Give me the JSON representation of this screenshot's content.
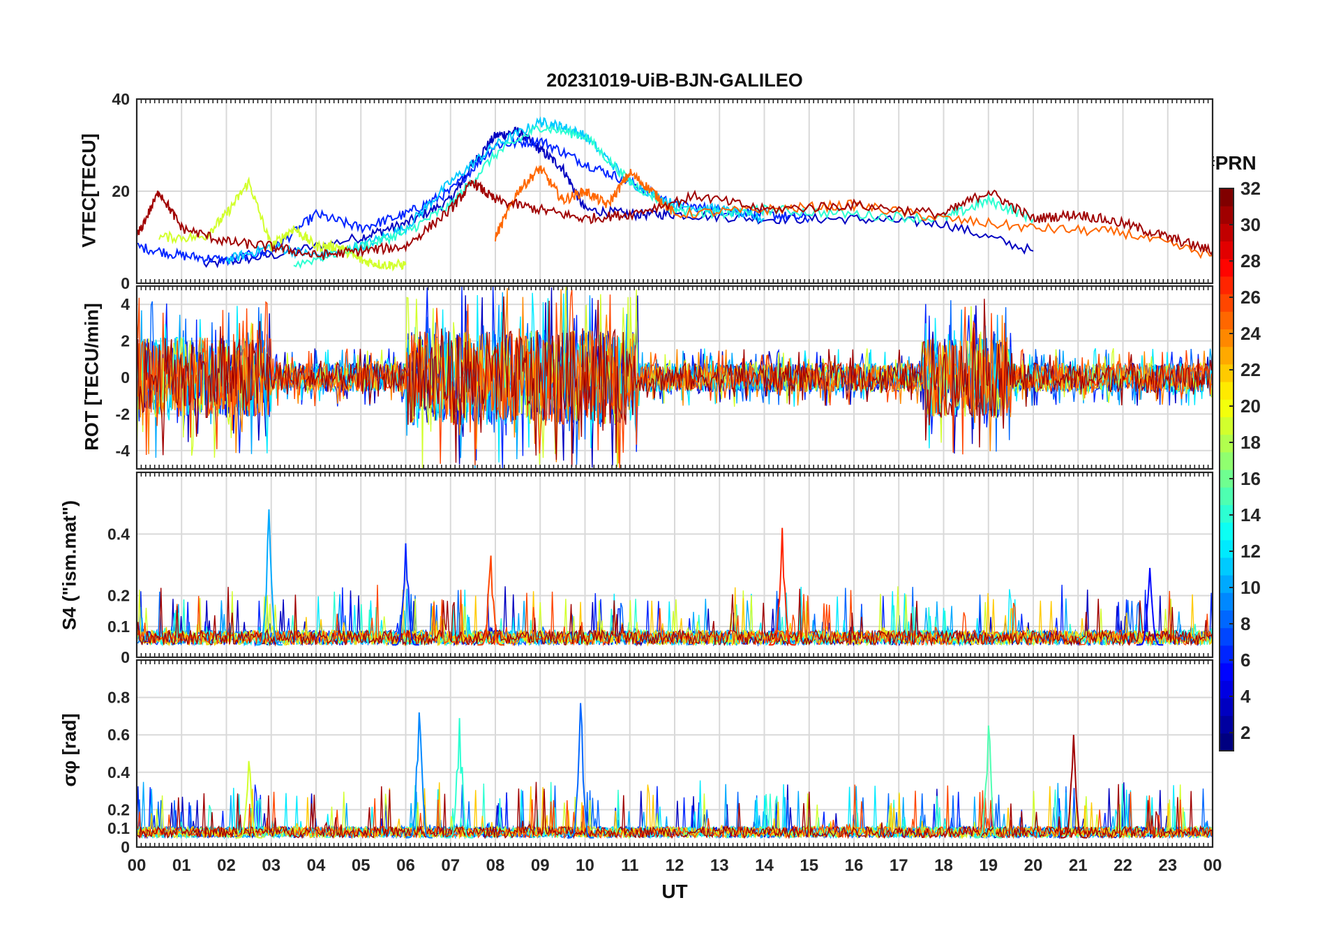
{
  "title": "20231019-UiB-BJN-GALILEO",
  "colorbar": {
    "label": "#PRN",
    "range": [
      1,
      32
    ],
    "ticks": [
      2,
      4,
      6,
      8,
      10,
      12,
      14,
      16,
      18,
      20,
      22,
      24,
      26,
      28,
      30,
      32
    ],
    "colormap": "jet"
  },
  "chart_data": [
    {
      "type": "line",
      "panel": "vtec",
      "ylabel": "VTEC[TECU]",
      "ylim": [
        0,
        40
      ],
      "yticks": [
        0,
        20,
        40
      ],
      "xlim": [
        0,
        24
      ],
      "grid": true,
      "series": [
        {
          "prn": 3,
          "x": [
            1.5,
            3,
            5,
            6,
            7,
            7.5,
            8,
            8.5,
            9,
            9.5,
            10,
            11,
            12,
            14,
            16,
            18,
            20
          ],
          "y": [
            4,
            6,
            10,
            13,
            18,
            26,
            32,
            33,
            29,
            25,
            16,
            15,
            15,
            14,
            14,
            13,
            7
          ]
        },
        {
          "prn": 6,
          "x": [
            0,
            1,
            2,
            3,
            4,
            5,
            6,
            7,
            8,
            9,
            10,
            11,
            12,
            13,
            14,
            15
          ],
          "y": [
            8,
            6,
            5,
            7,
            15,
            12,
            15,
            20,
            30,
            31,
            26,
            22,
            17,
            16,
            15,
            14
          ]
        },
        {
          "prn": 11,
          "x": [
            2,
            3,
            4,
            5,
            6,
            7,
            8,
            9,
            9.5,
            10,
            11,
            12,
            13,
            14
          ],
          "y": [
            5,
            8,
            6,
            8,
            12,
            22,
            30,
            35,
            34,
            32,
            22,
            17,
            16,
            14
          ]
        },
        {
          "prn": 14,
          "x": [
            3.5,
            5,
            6,
            7,
            8,
            9,
            10,
            11,
            12,
            13,
            14,
            16,
            18,
            19,
            20
          ],
          "y": [
            4,
            8,
            11,
            17,
            28,
            34,
            32,
            22,
            16,
            15,
            16,
            15,
            14,
            18,
            14
          ]
        },
        {
          "prn": 19,
          "x": [
            0.5,
            1.5,
            2,
            2.5,
            3,
            3.5,
            4,
            4.5,
            5,
            5.5,
            6
          ],
          "y": [
            10,
            10,
            15,
            22,
            8,
            12,
            8,
            8,
            5,
            4,
            4
          ]
        },
        {
          "prn": 25,
          "x": [
            8,
            8.5,
            9,
            9.5,
            10,
            10.5,
            11,
            11.5,
            12,
            14,
            16,
            18,
            20,
            22,
            24
          ],
          "y": [
            10,
            20,
            25,
            18,
            20,
            17,
            24,
            20,
            15,
            16,
            17,
            14,
            12,
            11,
            6
          ]
        },
        {
          "prn": 31,
          "x": [
            0,
            0.5,
            1,
            2,
            3,
            4,
            5,
            6,
            7,
            7.5,
            8,
            9,
            10,
            11,
            12.5,
            14,
            16,
            18,
            19,
            20,
            21,
            22,
            23,
            24
          ],
          "y": [
            10,
            20,
            12,
            9,
            8,
            6,
            7,
            8,
            16,
            22,
            18,
            16,
            14,
            15,
            19,
            16,
            17,
            15,
            20,
            14,
            15,
            13,
            10,
            7
          ]
        }
      ]
    },
    {
      "type": "line",
      "panel": "rot",
      "ylabel": "ROT [TECU/min]",
      "ylim": [
        -5,
        5
      ],
      "yticks": [
        -4,
        -2,
        0,
        2,
        4
      ],
      "xlim": [
        0,
        24
      ],
      "grid": true,
      "note_values": "dense noise around 0 TECU/min, amplitude up to about ±5 during 00–03 UT, 06–11 UT and 18–19 UT"
    },
    {
      "type": "line",
      "panel": "s4",
      "ylabel": "S4 (\"ism.mat\")",
      "ylim": [
        0,
        0.6
      ],
      "yticks": [
        0,
        0.1,
        0.2,
        0.4
      ],
      "xlim": [
        0,
        24
      ],
      "grid": true,
      "peaks": [
        {
          "x": 2.95,
          "y": 0.48,
          "prn": 10
        },
        {
          "x": 6.0,
          "y": 0.37,
          "prn": 6
        },
        {
          "x": 14.4,
          "y": 0.42,
          "prn": 27
        },
        {
          "x": 7.9,
          "y": 0.33,
          "prn": 26
        },
        {
          "x": 22.6,
          "y": 0.29,
          "prn": 5
        }
      ]
    },
    {
      "type": "line",
      "panel": "sigma_phi",
      "ylabel": "σφ [rad]",
      "ylim": [
        0,
        1
      ],
      "yticks": [
        0,
        0.1,
        0.2,
        0.4,
        0.6,
        0.8
      ],
      "xlim": [
        0,
        24
      ],
      "grid": true,
      "peaks": [
        {
          "x": 9.9,
          "y": 0.77,
          "prn": 8
        },
        {
          "x": 6.3,
          "y": 0.72,
          "prn": 9
        },
        {
          "x": 7.2,
          "y": 0.69,
          "prn": 14
        },
        {
          "x": 20.9,
          "y": 0.6,
          "prn": 31
        },
        {
          "x": 19.0,
          "y": 0.65,
          "prn": 15
        },
        {
          "x": 2.5,
          "y": 0.46,
          "prn": 19
        }
      ]
    }
  ],
  "xaxis": {
    "label": "UT",
    "ticks": [
      "00",
      "01",
      "02",
      "03",
      "04",
      "05",
      "06",
      "07",
      "08",
      "09",
      "10",
      "11",
      "12",
      "13",
      "14",
      "15",
      "16",
      "17",
      "18",
      "19",
      "20",
      "21",
      "22",
      "23",
      "00"
    ]
  }
}
